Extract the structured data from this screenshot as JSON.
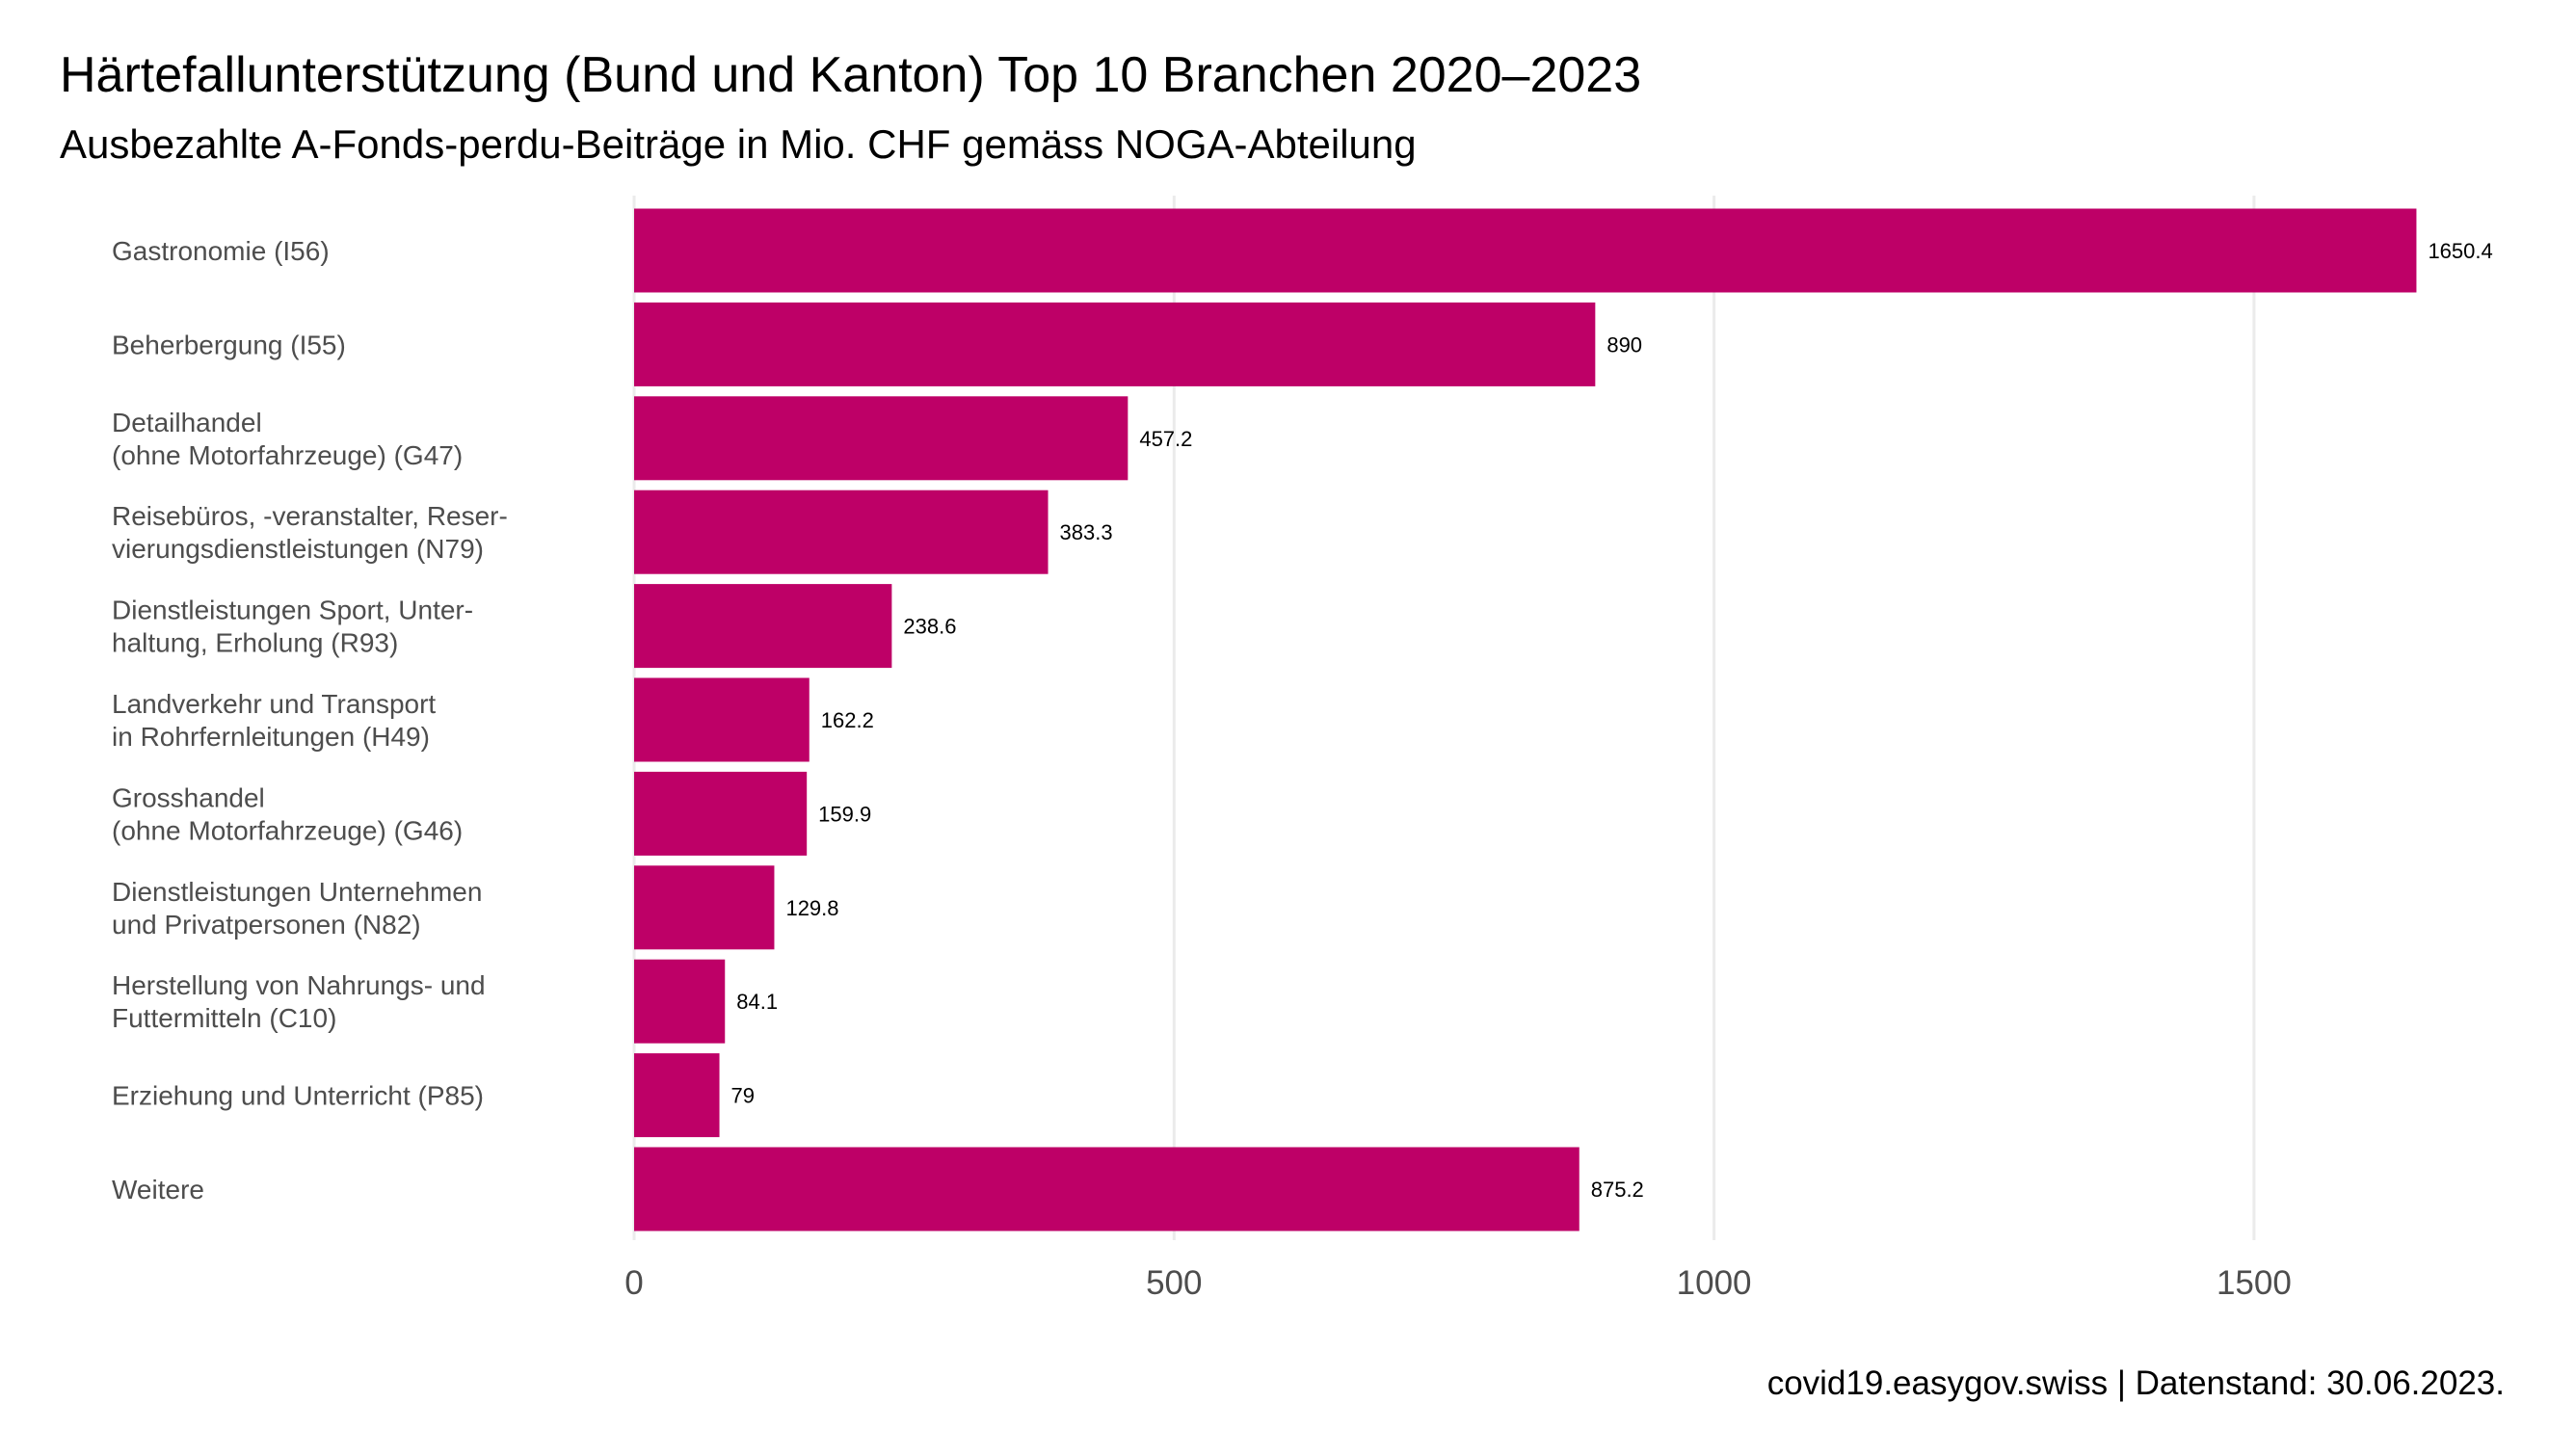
{
  "title": "Härtefallunterstützung (Bund und Kanton) Top 10 Branchen 2020–2023",
  "subtitle": "Ausbezahlte A-Fonds-perdu-Beiträge in Mio. CHF gemäss NOGA-Abteilung",
  "caption": "covid19.easygov.swiss | Datenstand: 30.06.2023.",
  "colors": {
    "bar": "#BE0067",
    "grid": "#EBEBEB",
    "category_text": "#4D4D4D",
    "tick_text": "#4D4D4D",
    "value_text": "#000000"
  },
  "chart_data": {
    "type": "bar",
    "orientation": "horizontal",
    "title": "Härtefallunterstützung (Bund und Kanton) Top 10 Branchen 2020–2023",
    "subtitle": "Ausbezahlte A-Fonds-perdu-Beiträge in Mio. CHF gemäss NOGA-Abteilung",
    "xlabel": "",
    "ylabel": "",
    "categories": [
      "Gastronomie (I56)",
      "Beherbergung (I55)",
      "Detailhandel\n(ohne Motorfahrzeuge) (G47)",
      "Reisebüros, -veranstalter, Reser-\nvierungsdienstleistungen (N79)",
      "Dienstleistungen Sport, Unter-\nhaltung, Erholung (R93)",
      "Landverkehr und Transport\nin Rohrfernleitungen (H49)",
      "Grosshandel\n(ohne Motorfahrzeuge) (G46)",
      "Dienstleistungen Unternehmen\nund Privatpersonen (N82)",
      "Herstellung von Nahrungs- und\nFuttermitteln (C10)",
      "Erziehung und Unterricht (P85)",
      "Weitere"
    ],
    "values": [
      1650.4,
      890,
      457.2,
      383.3,
      238.6,
      162.2,
      159.9,
      129.8,
      84.1,
      79,
      875.2
    ],
    "value_labels": [
      "1650.4",
      "890",
      "457.2",
      "383.3",
      "238.6",
      "162.2",
      "159.9",
      "129.8",
      "84.1",
      "79",
      "875.2"
    ],
    "xticks": [
      0,
      500,
      1000,
      1500
    ],
    "xtick_labels": [
      "0",
      "500",
      "1000",
      "1500"
    ],
    "xlim": [
      0,
      1700
    ],
    "grid": "vertical",
    "legend": "none"
  }
}
